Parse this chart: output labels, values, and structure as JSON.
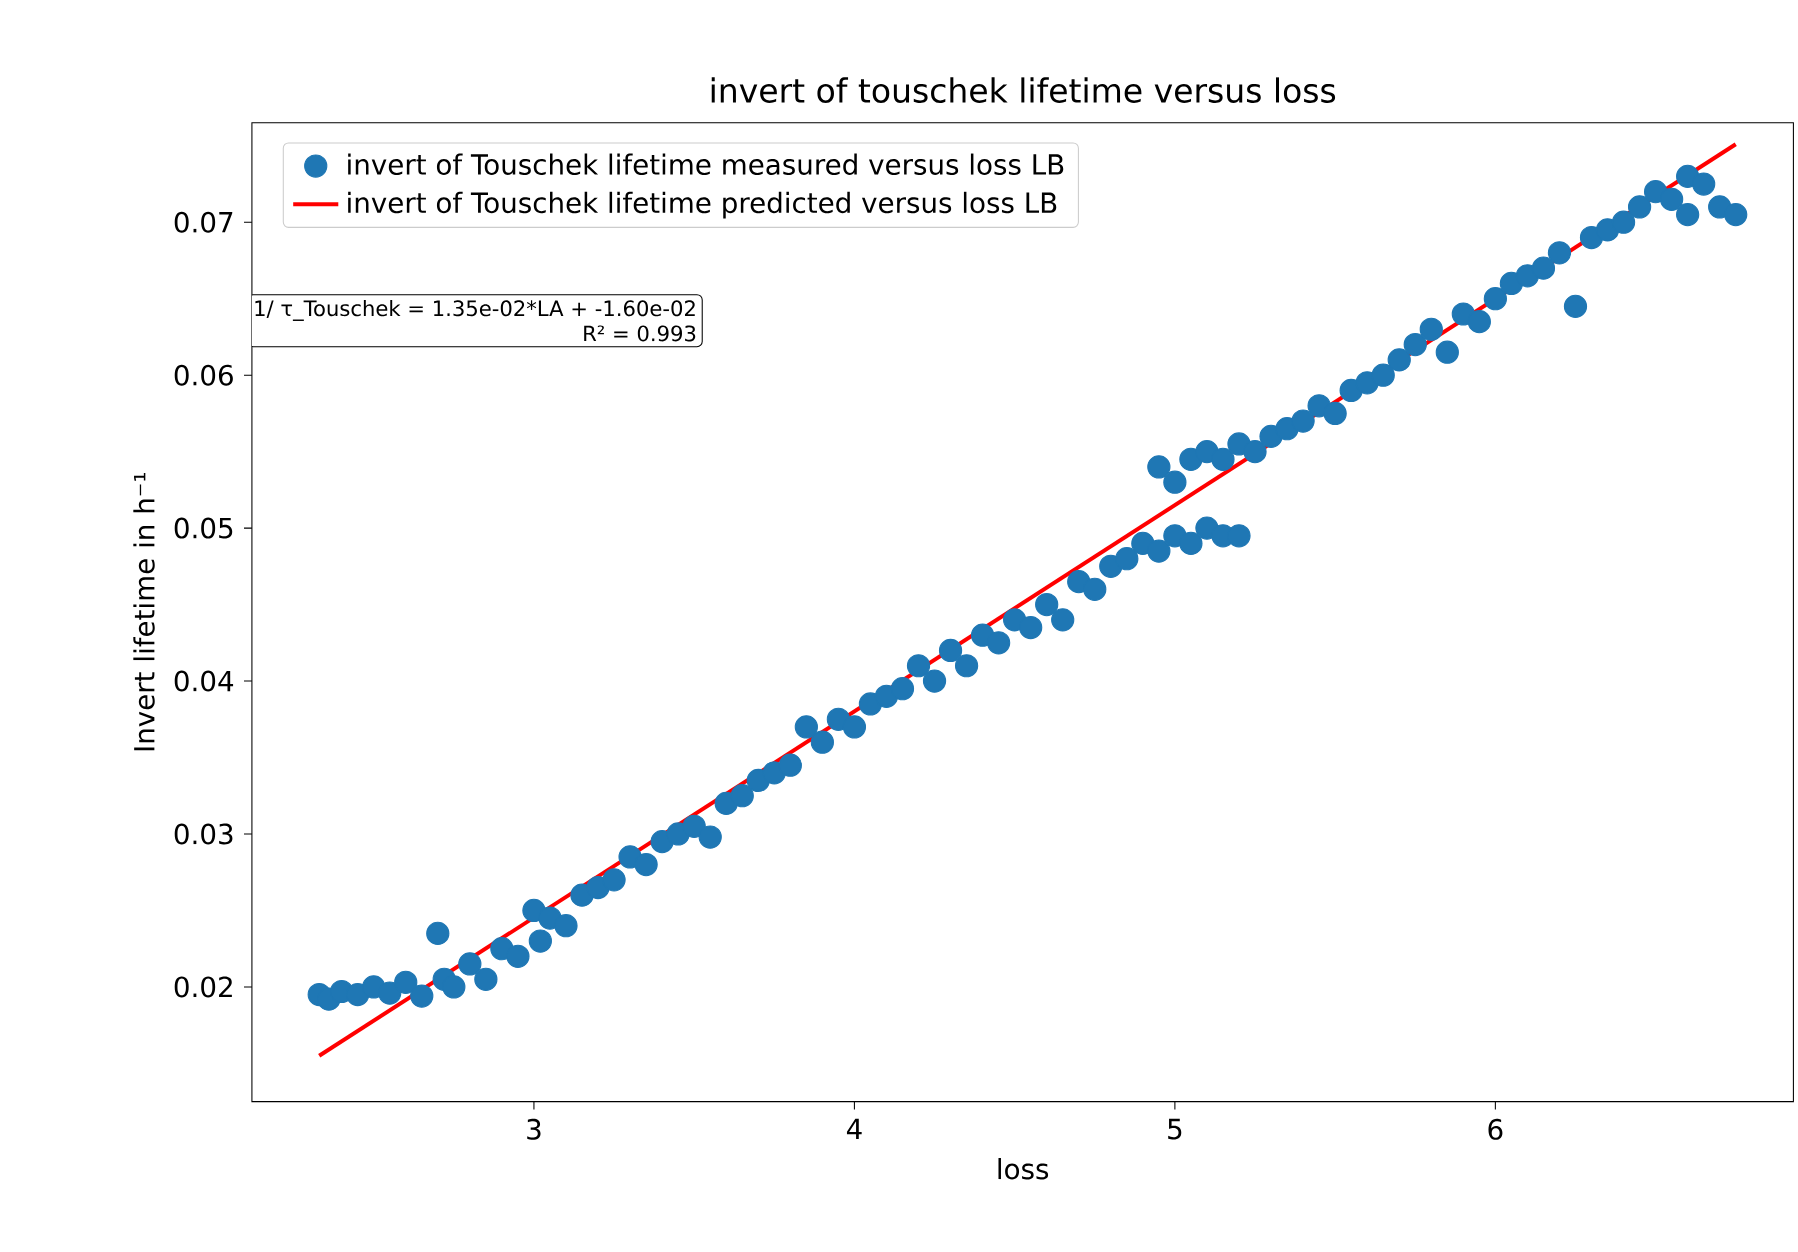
{
  "chart_data": {
    "type": "scatter",
    "title": "invert of touschek lifetime versus loss",
    "xlabel": "loss",
    "ylabel": "Invert lifetime in h⁻¹",
    "annotations": [
      "1/ τ_Touschek = 1.35e-02*LA + -1.60e-02",
      "R² = 0.993"
    ],
    "xlim": [
      2.12,
      6.93
    ],
    "xticks": [
      3,
      4,
      5,
      6
    ],
    "ylim": [
      0.0125,
      0.0765
    ],
    "yticks": [
      0.02,
      0.03,
      0.04,
      0.05,
      0.06,
      0.07
    ],
    "legend": "top left",
    "grid": false,
    "series": [
      {
        "name": "invert of Touschek lifetime measured versus loss LB",
        "marker": "circle",
        "color": "#1f77b4",
        "x": [
          2.33,
          2.36,
          2.4,
          2.45,
          2.5,
          2.55,
          2.6,
          2.65,
          2.7,
          2.72,
          2.75,
          2.8,
          2.85,
          2.9,
          2.95,
          3.0,
          3.02,
          3.05,
          3.1,
          3.15,
          3.2,
          3.25,
          3.3,
          3.35,
          3.4,
          3.45,
          3.5,
          3.55,
          3.6,
          3.65,
          3.7,
          3.75,
          3.8,
          3.85,
          3.9,
          3.95,
          4.0,
          4.05,
          4.1,
          4.15,
          4.2,
          4.25,
          4.3,
          4.35,
          4.4,
          4.45,
          4.5,
          4.55,
          4.6,
          4.65,
          4.7,
          4.75,
          4.8,
          4.85,
          4.9,
          4.95,
          5.0,
          5.05,
          5.1,
          5.15,
          5.2,
          4.95,
          5.0,
          5.05,
          5.1,
          5.15,
          5.2,
          5.25,
          5.3,
          5.35,
          5.4,
          5.45,
          5.5,
          5.55,
          5.6,
          5.65,
          5.7,
          5.75,
          5.8,
          5.85,
          5.9,
          5.95,
          6.0,
          6.05,
          6.1,
          6.15,
          6.2,
          6.25,
          6.3,
          6.35,
          6.4,
          6.45,
          6.5,
          6.55,
          6.6,
          6.65,
          6.7,
          6.75,
          6.6
        ],
        "values": [
          0.0195,
          0.0192,
          0.0197,
          0.0195,
          0.02,
          0.0196,
          0.0203,
          0.0194,
          0.0235,
          0.0205,
          0.02,
          0.0215,
          0.0205,
          0.0225,
          0.022,
          0.025,
          0.023,
          0.0245,
          0.024,
          0.026,
          0.0265,
          0.027,
          0.0285,
          0.028,
          0.0295,
          0.03,
          0.0305,
          0.0298,
          0.032,
          0.0325,
          0.0335,
          0.034,
          0.0345,
          0.037,
          0.036,
          0.0375,
          0.037,
          0.0385,
          0.039,
          0.0395,
          0.041,
          0.04,
          0.042,
          0.041,
          0.043,
          0.0425,
          0.044,
          0.0435,
          0.045,
          0.044,
          0.0465,
          0.046,
          0.0475,
          0.048,
          0.049,
          0.0485,
          0.0495,
          0.049,
          0.05,
          0.0495,
          0.0495,
          0.054,
          0.053,
          0.0545,
          0.055,
          0.0545,
          0.0555,
          0.055,
          0.056,
          0.0565,
          0.057,
          0.058,
          0.0575,
          0.059,
          0.0595,
          0.06,
          0.061,
          0.062,
          0.063,
          0.0615,
          0.064,
          0.0635,
          0.065,
          0.066,
          0.0665,
          0.067,
          0.068,
          0.0645,
          0.069,
          0.0695,
          0.07,
          0.071,
          0.072,
          0.0715,
          0.073,
          0.0725,
          0.071,
          0.0705,
          0.0705
        ]
      },
      {
        "name": "invert of Touschek lifetime predicted versus loss LB",
        "type": "line",
        "marker": "none",
        "color": "#ff0000",
        "x": [
          2.33,
          6.75
        ],
        "values": [
          0.0155,
          0.0751
        ]
      }
    ]
  }
}
